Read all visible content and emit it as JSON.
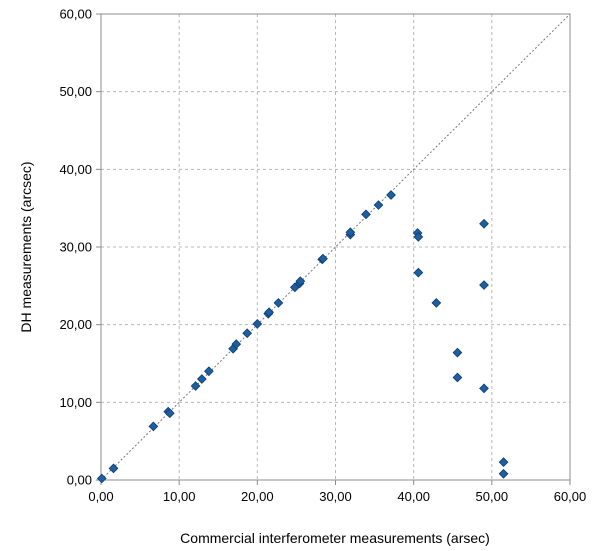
{
  "chart_data": {
    "type": "scatter",
    "title": "",
    "xlabel": "Commercial interferometer measurements (arsec)",
    "ylabel": "DH measurements (arcsec)",
    "xlim": [
      0,
      60
    ],
    "ylim": [
      0,
      60
    ],
    "x_ticks": [
      "0,00",
      "10,00",
      "20,00",
      "30,00",
      "40,00",
      "50,00",
      "60,00"
    ],
    "y_ticks": [
      "0,00",
      "10,00",
      "20,00",
      "30,00",
      "40,00",
      "50,00",
      "60,00"
    ],
    "grid": true,
    "grid_style": "dashed",
    "reference_line": {
      "from": [
        0,
        0
      ],
      "to": [
        60,
        60
      ],
      "style": "dotted"
    },
    "colors": {
      "marker": "#1f5fa0",
      "marker_edge": "#0b3d73",
      "grid": "#b8b8b8",
      "axis": "#8c8c8c",
      "reference": "#7a7a7a"
    },
    "series": [
      {
        "marker": "diamond",
        "points": [
          [
            0.1,
            0.2
          ],
          [
            1.6,
            1.5
          ],
          [
            6.7,
            6.9
          ],
          [
            8.6,
            8.8
          ],
          [
            8.8,
            8.6
          ],
          [
            12.1,
            12.1
          ],
          [
            12.9,
            13.0
          ],
          [
            13.8,
            14.0
          ],
          [
            16.9,
            16.9
          ],
          [
            17.3,
            17.5
          ],
          [
            18.7,
            18.9
          ],
          [
            20.0,
            20.1
          ],
          [
            21.4,
            21.4
          ],
          [
            21.5,
            21.6
          ],
          [
            22.7,
            22.8
          ],
          [
            24.8,
            24.8
          ],
          [
            25.4,
            25.3
          ],
          [
            25.5,
            25.6
          ],
          [
            28.3,
            28.4
          ],
          [
            28.4,
            28.5
          ],
          [
            31.9,
            31.6
          ],
          [
            31.9,
            31.9
          ],
          [
            33.9,
            34.2
          ],
          [
            35.5,
            35.4
          ],
          [
            37.1,
            36.7
          ],
          [
            40.5,
            31.8
          ],
          [
            40.6,
            31.3
          ],
          [
            40.6,
            26.7
          ],
          [
            42.9,
            22.8
          ],
          [
            45.6,
            16.4
          ],
          [
            45.6,
            13.2
          ],
          [
            49.0,
            33.0
          ],
          [
            49.0,
            25.1
          ],
          [
            49.0,
            11.8
          ],
          [
            51.5,
            2.3
          ],
          [
            51.5,
            0.8
          ]
        ]
      }
    ]
  }
}
